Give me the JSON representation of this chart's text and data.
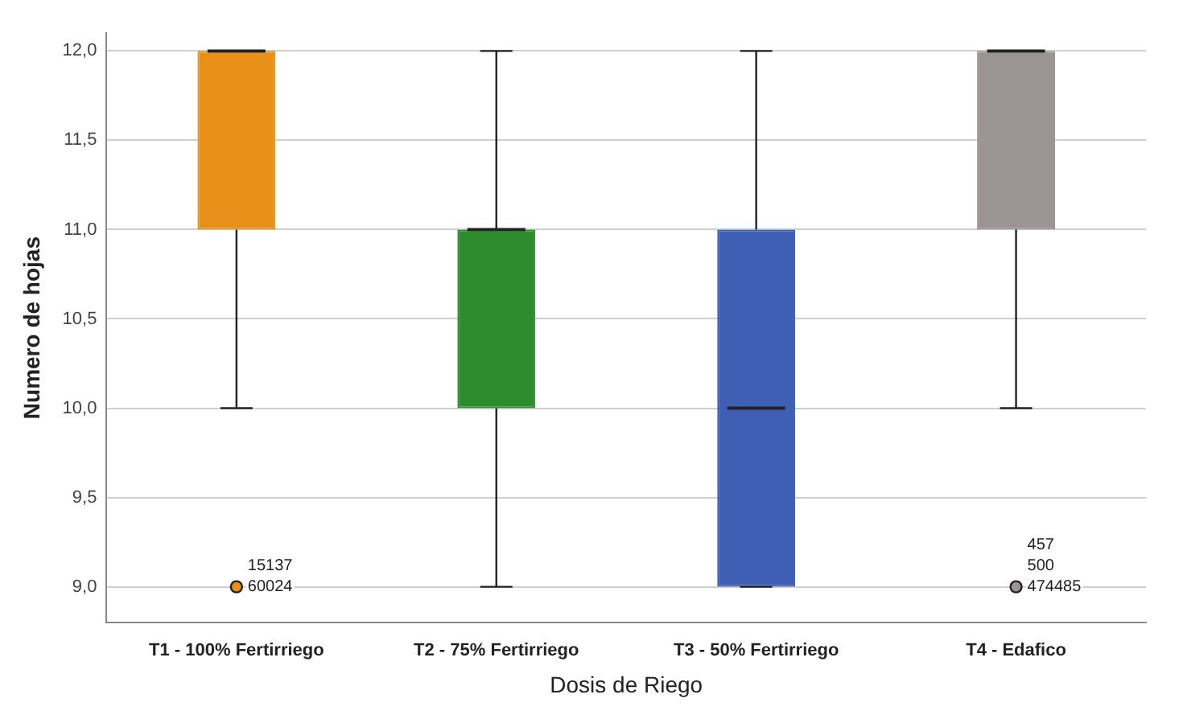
{
  "chart_data": {
    "type": "box",
    "xlabel": "Dosis de Riego",
    "ylabel": "Numero de hojas",
    "categories": [
      "T1 - 100% Fertirriego",
      "T2 - 75% Fertirriego",
      "T3 - 50% Fertirriego",
      "T4 - Edafico"
    ],
    "colors": [
      "#e8901a",
      "#2e8b2e",
      "#3f5fb5",
      "#9a9494"
    ],
    "boxes": [
      {
        "low": 10,
        "q1": 11,
        "median": 12,
        "q3": 12,
        "high": 12,
        "outliers": [
          9
        ]
      },
      {
        "low": 9,
        "q1": 10,
        "median": 11,
        "q3": 11,
        "high": 12
      },
      {
        "low": 9,
        "q1": 9,
        "median": 10,
        "q3": 11,
        "high": 12
      },
      {
        "low": 10,
        "q1": 11,
        "median": 12,
        "q3": 12,
        "high": 12,
        "outliers": [
          9
        ]
      }
    ],
    "ylim": [
      8.8,
      12.1
    ],
    "yticks": [
      {
        "value": 9,
        "label": "9,0"
      },
      {
        "value": 9.5,
        "label": "9,5"
      },
      {
        "value": 10,
        "label": "10,0"
      },
      {
        "value": 10.5,
        "label": "10,5"
      },
      {
        "value": 11,
        "label": "11,0"
      },
      {
        "value": 11.5,
        "label": "11,5"
      },
      {
        "value": 12,
        "label": "12,0"
      }
    ],
    "grid": "y",
    "annotations": [
      "15137",
      "60024",
      "457",
      "500",
      "474485"
    ]
  }
}
